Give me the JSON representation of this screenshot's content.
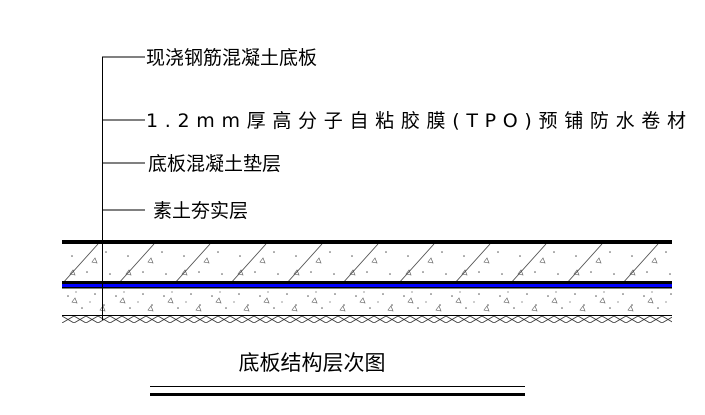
{
  "labels": [
    "现浇钢筋混凝土底板",
    "1.2mm厚高分子自粘胶膜(TPO)预铺防水卷材",
    "底板混凝土垫层",
    "素土夯实层"
  ],
  "title": "底板结构层次图",
  "colors": {
    "membrane": "#0000ff",
    "line": "#000000"
  }
}
